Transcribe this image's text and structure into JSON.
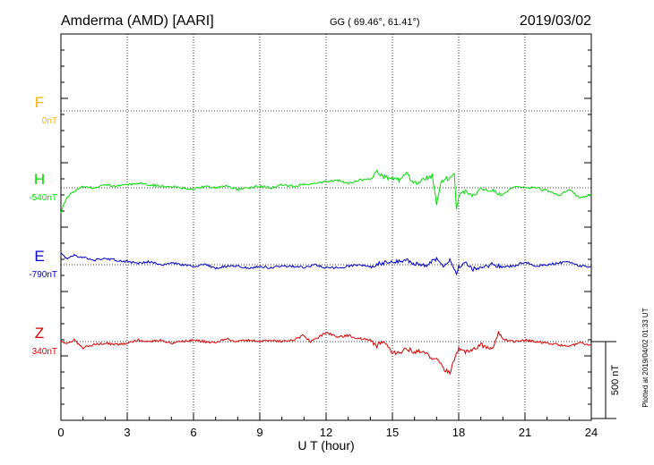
{
  "header": {
    "station": "Amderma (AMD)  [AARI]",
    "coords": "GG ( 69.46°,  61.41°)",
    "date": "2019/03/02"
  },
  "plotted_note": "Plotted at 2019/04/02 01:33 UT",
  "scale_bar": {
    "label": "500 nT",
    "value_nT": 500
  },
  "colors": {
    "F": "#ffb000",
    "H": "#00e000",
    "E": "#0000cc",
    "Z": "#dd0000"
  },
  "chart_data": {
    "type": "line",
    "title": "",
    "xlabel": "U T (hour)",
    "ylabel": "",
    "xlim": [
      0,
      24
    ],
    "xticks": [
      "0",
      "3",
      "6",
      "9",
      "12",
      "15",
      "18",
      "21",
      "24"
    ],
    "grid": true,
    "channels": [
      {
        "name": "F",
        "baseline": "0nT"
      },
      {
        "name": "H",
        "baseline": "-540nT"
      },
      {
        "name": "E",
        "baseline": "-790nT"
      },
      {
        "name": "Z",
        "baseline": "340nT"
      }
    ],
    "units": "nT",
    "series": [
      {
        "name": "H",
        "x": [
          0,
          0.1,
          0.2,
          0.3,
          0.5,
          0.8,
          1,
          1.5,
          2,
          2.5,
          3,
          3.5,
          4,
          4.5,
          5,
          5.5,
          6,
          6.5,
          7,
          7.5,
          8,
          8.5,
          9,
          9.5,
          10,
          10.5,
          11,
          11.5,
          12,
          12.5,
          13,
          13.5,
          14,
          14.3,
          14.6,
          15,
          15.3,
          15.6,
          16,
          16.4,
          16.8,
          17,
          17.2,
          17.5,
          17.8,
          17.9,
          18,
          18.3,
          18.6,
          19,
          19.5,
          20,
          20.5,
          21,
          21.5,
          22,
          22.5,
          23,
          23.5,
          24
        ],
        "y": [
          -170,
          -110,
          -90,
          -60,
          -30,
          -10,
          10,
          0,
          20,
          10,
          20,
          30,
          20,
          10,
          10,
          0,
          -10,
          10,
          0,
          10,
          -10,
          0,
          10,
          0,
          20,
          10,
          20,
          30,
          40,
          50,
          30,
          50,
          60,
          100,
          70,
          60,
          50,
          100,
          30,
          50,
          80,
          -110,
          40,
          60,
          100,
          -130,
          -50,
          -20,
          -60,
          0,
          -20,
          -40,
          10,
          0,
          0,
          -20,
          -50,
          -10,
          -70,
          -40
        ]
      },
      {
        "name": "E",
        "x": [
          0,
          0.3,
          0.6,
          1,
          1.5,
          2,
          2.5,
          3,
          3.5,
          4,
          4.5,
          5,
          5.5,
          6,
          6.5,
          7,
          7.5,
          8,
          8.5,
          9,
          9.5,
          10,
          10.5,
          11,
          11.5,
          12,
          12.5,
          13,
          13.5,
          14,
          14.5,
          15,
          15.5,
          16,
          16.5,
          17,
          17.3,
          17.6,
          17.9,
          18,
          18.3,
          18.6,
          19,
          19.5,
          20,
          20.5,
          21,
          21.5,
          22,
          22.5,
          23,
          23.5,
          24
        ],
        "y": [
          70,
          40,
          60,
          50,
          30,
          40,
          30,
          20,
          10,
          20,
          0,
          10,
          0,
          -10,
          0,
          -20,
          -10,
          -10,
          -20,
          -10,
          -20,
          -10,
          -10,
          -20,
          0,
          -20,
          -20,
          -10,
          0,
          -10,
          10,
          20,
          30,
          10,
          -10,
          40,
          0,
          30,
          -60,
          -10,
          20,
          -30,
          -20,
          0,
          -10,
          -10,
          20,
          -10,
          0,
          10,
          20,
          -10,
          -10
        ]
      },
      {
        "name": "Z",
        "x": [
          0,
          0.3,
          0.6,
          1,
          1.5,
          2,
          2.5,
          3,
          3.5,
          4,
          4.5,
          5,
          5.5,
          6,
          6.5,
          7,
          7.5,
          8,
          8.5,
          9,
          9.5,
          10,
          10.5,
          11,
          11.3,
          11.6,
          12,
          12.5,
          13,
          13.5,
          14,
          14.3,
          14.6,
          15,
          15.3,
          15.6,
          16,
          16.4,
          16.8,
          17,
          17.3,
          17.6,
          17.8,
          18,
          18.3,
          18.6,
          19,
          19.5,
          19.8,
          20,
          20.5,
          21,
          21.5,
          22,
          22.5,
          23,
          23.5,
          24
        ],
        "y": [
          0,
          -10,
          10,
          -40,
          -20,
          -10,
          -20,
          -10,
          10,
          0,
          10,
          -10,
          0,
          10,
          0,
          -10,
          20,
          0,
          10,
          0,
          10,
          0,
          10,
          40,
          0,
          20,
          60,
          30,
          40,
          20,
          10,
          -30,
          10,
          -70,
          -80,
          -40,
          -70,
          -60,
          -120,
          -100,
          -180,
          -200,
          -120,
          -40,
          -70,
          -50,
          -20,
          -50,
          60,
          20,
          0,
          10,
          0,
          -10,
          -20,
          -30,
          -10,
          -20
        ]
      }
    ]
  }
}
